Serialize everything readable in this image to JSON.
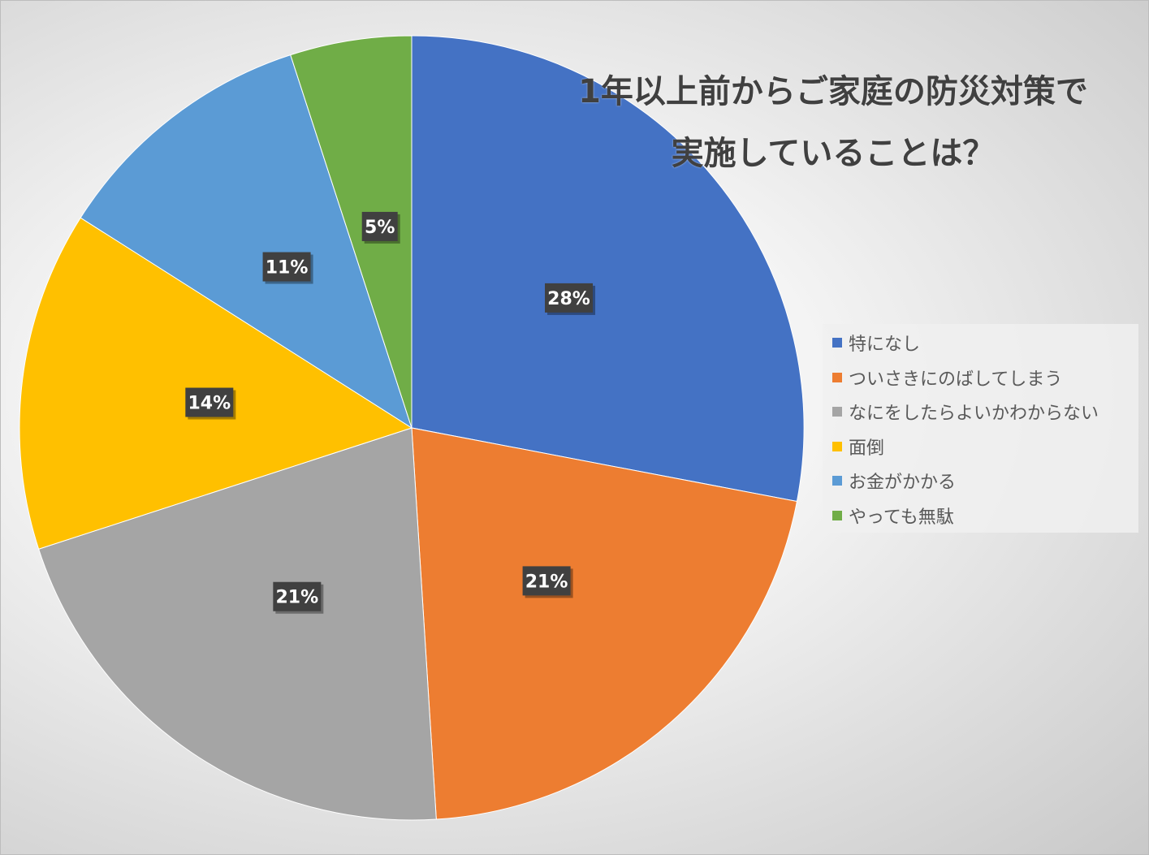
{
  "chart_data": {
    "type": "pie",
    "title": "1年以上前からご家庭の防災対策で\n実施していることは？",
    "legend_position": "right",
    "categories": [
      "特になし",
      "ついさきにのばしてしまう",
      "なにをしたらよいかわからない",
      "面倒",
      "お金がかかる",
      "やっても無駄"
    ],
    "values": [
      28,
      21,
      21,
      14,
      11,
      5
    ],
    "labels": [
      "28%",
      "21%",
      "21%",
      "14%",
      "11%",
      "5%"
    ],
    "colors": [
      "#4472C4",
      "#ED7D31",
      "#A5A5A5",
      "#FFC000",
      "#5B9BD5",
      "#70AD47"
    ]
  }
}
